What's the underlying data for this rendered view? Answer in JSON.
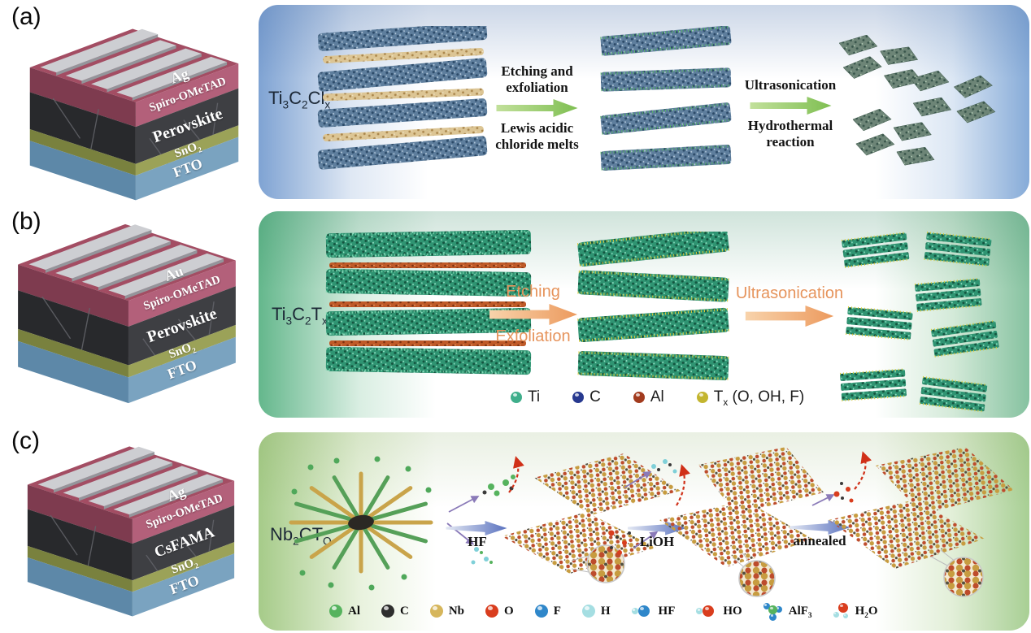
{
  "panels": {
    "a": {
      "label": "(a)",
      "stack": {
        "electrode": [
          {
            "t": "Ag"
          }
        ],
        "htl": [
          {
            "t": "Spiro-OMeTAD"
          }
        ],
        "absorber": [
          {
            "t": "Perovskite"
          }
        ],
        "etl": [
          {
            "t": "SnO"
          },
          {
            "t": "2",
            "sub": true
          }
        ],
        "substrate": [
          {
            "t": "FTO"
          }
        ]
      },
      "material": [
        {
          "t": "Ti"
        },
        {
          "t": "3",
          "sub": true
        },
        {
          "t": "C"
        },
        {
          "t": "2",
          "sub": true
        },
        {
          "t": "Cl"
        },
        {
          "t": "x",
          "sub": true
        }
      ],
      "step1": {
        "top1": "Etching and",
        "top2": "exfoliation",
        "bottom1": "Lewis acidic",
        "bottom2": "chloride melts"
      },
      "step2": {
        "top1": "Ultrasonication",
        "bottom1": "Hydrothermal",
        "bottom2": "reaction"
      }
    },
    "b": {
      "label": "(b)",
      "stack": {
        "electrode": [
          {
            "t": "Au"
          }
        ],
        "htl": [
          {
            "t": "Spiro-OMeTAD"
          }
        ],
        "absorber": [
          {
            "t": "Perovskite"
          }
        ],
        "etl": [
          {
            "t": "SnO"
          },
          {
            "t": "2",
            "sub": true
          }
        ],
        "substrate": [
          {
            "t": "FTO"
          }
        ]
      },
      "material": [
        {
          "t": "Ti"
        },
        {
          "t": "3",
          "sub": true
        },
        {
          "t": "C"
        },
        {
          "t": "2",
          "sub": true
        },
        {
          "t": "T"
        },
        {
          "t": "x",
          "sub": true
        }
      ],
      "step1": {
        "top": "Etching",
        "bottom": "Exfoliation"
      },
      "step2": {
        "top": "Ultrasonication"
      },
      "legend": [
        {
          "name": "Ti",
          "color": "#3fae8b",
          "label": [
            {
              "t": "Ti"
            }
          ]
        },
        {
          "name": "C",
          "color": "#27398f",
          "label": [
            {
              "t": "C"
            }
          ]
        },
        {
          "name": "Al",
          "color": "#a23b1e",
          "label": [
            {
              "t": "Al"
            }
          ]
        },
        {
          "name": "Tx",
          "color": "#c3b52f",
          "label": [
            {
              "t": "T"
            },
            {
              "t": "x",
              "sub": true
            },
            {
              "t": " (O, OH, F)"
            }
          ]
        }
      ]
    },
    "c": {
      "label": "(c)",
      "stack": {
        "electrode": [
          {
            "t": "Ag"
          }
        ],
        "htl": [
          {
            "t": "Spiro-OMeTAD"
          }
        ],
        "absorber": [
          {
            "t": "CsFAMA"
          }
        ],
        "etl": [
          {
            "t": "SnO"
          },
          {
            "t": "2",
            "sub": true
          }
        ],
        "substrate": [
          {
            "t": "FTO"
          }
        ]
      },
      "material": [
        {
          "t": "Nb"
        },
        {
          "t": "2",
          "sub": true
        },
        {
          "t": "CT"
        },
        {
          "t": "O",
          "sub": true
        }
      ],
      "steps": {
        "step1": "HF",
        "step2": "LiOH",
        "step3": "annealed"
      },
      "legend_atoms": [
        {
          "name": "Al",
          "color": "#56b35e",
          "label": [
            {
              "t": "Al"
            }
          ]
        },
        {
          "name": "C",
          "color": "#2e2e2e",
          "label": [
            {
              "t": "C"
            }
          ]
        },
        {
          "name": "Nb",
          "color": "#d6b65c",
          "label": [
            {
              "t": "Nb"
            }
          ]
        },
        {
          "name": "O",
          "color": "#d93d1e",
          "label": [
            {
              "t": "O"
            }
          ]
        },
        {
          "name": "F",
          "color": "#2f87ca",
          "label": [
            {
              "t": "F"
            }
          ]
        },
        {
          "name": "H",
          "color": "#a5dee2",
          "label": [
            {
              "t": "H"
            }
          ]
        }
      ],
      "legend_molecules": [
        {
          "name": "HF",
          "label": [
            {
              "t": "HF"
            }
          ]
        },
        {
          "name": "HO",
          "label": [
            {
              "t": "HO"
            }
          ]
        },
        {
          "name": "AlF3",
          "label": [
            {
              "t": "AlF"
            },
            {
              "t": "3",
              "sub": true
            }
          ]
        },
        {
          "name": "H2O",
          "label": [
            {
              "t": "H"
            },
            {
              "t": "2",
              "sub": true
            },
            {
              "t": "O"
            }
          ]
        }
      ]
    }
  },
  "colors": {
    "panel_a_accent": "#7fa3d3",
    "panel_b_accent": "#64b78c",
    "panel_c_accent": "#a6cb89",
    "arrow_a": "#8fc25e",
    "arrow_b": "#ee9a5e",
    "arrow_c": "#5a72bf",
    "electrode_layer": "#a34d63",
    "absorber_layer": "#3e3f43",
    "sno2_layer": "#9ba258",
    "fto_layer": "#7aa3c0",
    "metal_bar": "#cdced2"
  }
}
